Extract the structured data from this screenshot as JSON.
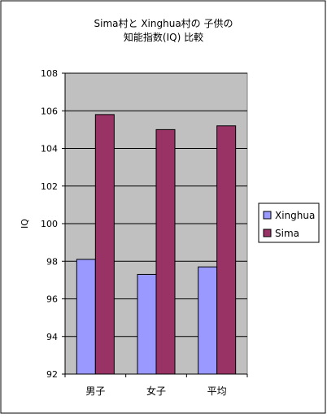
{
  "chart_data": {
    "type": "bar",
    "title_line1": "Sima村と Xinghua村の 子供の",
    "title_line2": "知能指数(IQ) 比較",
    "ylabel": "IQ",
    "xlabel": "",
    "categories": [
      "男子",
      "女子",
      "平均"
    ],
    "ylim": [
      92,
      108
    ],
    "yticks": [
      92,
      94,
      96,
      98,
      100,
      102,
      104,
      106,
      108
    ],
    "grid": true,
    "legend_position": "right",
    "series": [
      {
        "name": "Xinghua",
        "color": "#9999ff",
        "values": [
          98.1,
          97.3,
          97.7
        ]
      },
      {
        "name": "Sima",
        "color": "#993366",
        "values": [
          105.8,
          105.0,
          105.2
        ]
      }
    ],
    "plot_background": "#c0c0c0"
  }
}
